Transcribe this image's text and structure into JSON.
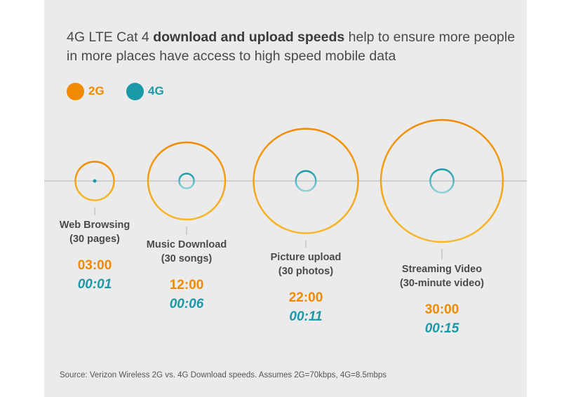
{
  "title": {
    "prefix": "4G LTE Cat 4 ",
    "bold": "download and upload speeds",
    "suffix": " help to ensure more people in more places have access to high speed mobile data"
  },
  "colors": {
    "g2": "#f08a00",
    "g4": "#1a9aa8",
    "g2_light": "#f6b92a",
    "g4_light": "#8fd1d8",
    "text": "#4a4a4a",
    "axis": "#b0b0b0"
  },
  "legend": [
    {
      "name": "2G",
      "color": "#f08a00"
    },
    {
      "name": "4G",
      "color": "#1a9aa8"
    }
  ],
  "chart_data": {
    "type": "bubble",
    "series": [
      {
        "name": "2G",
        "values_minutes": [
          3,
          12,
          22,
          30
        ]
      },
      {
        "name": "4G",
        "values_minutes": [
          0.0167,
          0.1,
          0.1833,
          0.25
        ]
      }
    ],
    "categories": [
      {
        "line1": "Web Browsing",
        "line2": "(30 pages)",
        "time_2g": "03:00",
        "time_4g": "00:01"
      },
      {
        "line1": "Music Download",
        "line2": "(30 songs)",
        "time_2g": "12:00",
        "time_4g": "00:06"
      },
      {
        "line1": "Picture upload",
        "line2": "(30 photos)",
        "time_2g": "22:00",
        "time_4g": "00:11"
      },
      {
        "line1": "Streaming Video",
        "line2": "(30-minute video)",
        "time_2g": "30:00",
        "time_4g": "00:15"
      }
    ]
  },
  "source": "Source: Verizon Wireless 2G vs. 4G Download speeds. Assumes 2G=70kbps, 4G=8.5mbps"
}
